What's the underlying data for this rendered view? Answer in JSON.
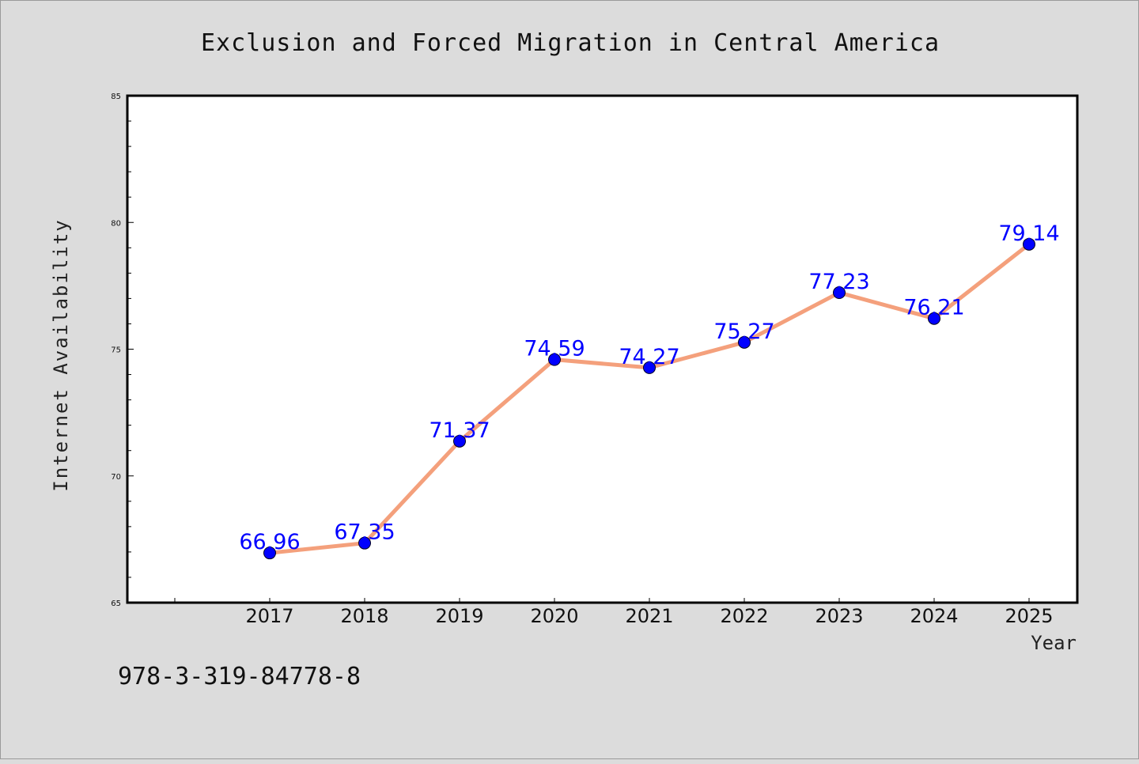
{
  "chart_data": {
    "type": "line",
    "title": "Exclusion and Forced Migration in Central America",
    "xlabel": "Year",
    "ylabel": "Internet Availability",
    "categories": [
      "2017",
      "2018",
      "2019",
      "2020",
      "2021",
      "2022",
      "2023",
      "2024",
      "2025"
    ],
    "series": [
      {
        "values": [
          66.96,
          67.35,
          71.37,
          74.59,
          74.27,
          75.27,
          77.23,
          76.21,
          79.14
        ],
        "labels": [
          "66.96",
          "67.35",
          "71.37",
          "74.59",
          "74.27",
          "75.27",
          "77.23",
          "76.21",
          "79.14"
        ]
      }
    ],
    "ylim": [
      65,
      85
    ],
    "yticks": [
      "65",
      "70",
      "75",
      "80",
      "85"
    ],
    "grid": false,
    "legend": "none",
    "colors": {
      "line": "#f4a07c",
      "marker": "#0000ff",
      "label": "#0000ff",
      "plot_background": "#ffffff",
      "figure_background": "#dcdcdc"
    }
  },
  "footnote": "978-3-319-84778-8"
}
